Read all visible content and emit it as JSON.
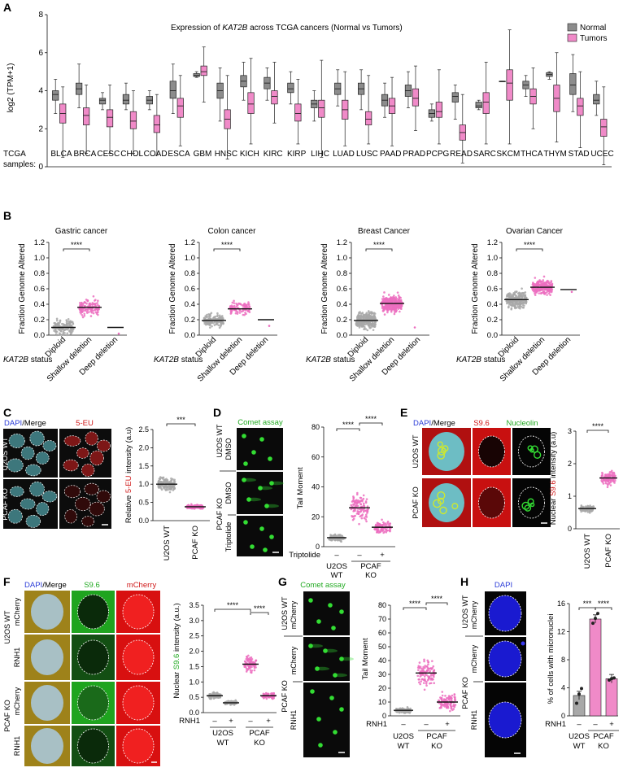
{
  "panels": {
    "A": "A",
    "B": "B",
    "C": "C",
    "D": "D",
    "E": "E",
    "F": "F",
    "G": "G",
    "H": "H"
  },
  "colors": {
    "normal": "#8c8c8c",
    "tumor": "#f08ac8",
    "scatter_gray": "#a8a8a8",
    "scatter_pink": "#ec6fc0",
    "green": "#33dd33",
    "red": "#e02222",
    "blue": "#1515d8",
    "cyan": "#66d0d8"
  },
  "chart_data": [
    {
      "id": "A",
      "type": "box",
      "title": "Expression of KAT2B across TCGA cancers (Normal vs Tumors)",
      "title_parts": {
        "before": "Expression of ",
        "italic": "KAT2B",
        "after": " across TCGA cancers (Normal vs Tumors)"
      },
      "ylabel": "log2 (TPM+1)",
      "ylim": [
        0,
        8
      ],
      "yticks": [
        "0",
        "2",
        "4",
        "6",
        "8"
      ],
      "xprefix": "TCGA samples:",
      "xprefix_lines": [
        "TCGA",
        "samples:"
      ],
      "categories": [
        "BLCA",
        "BRCA",
        "CESC",
        "CHOL",
        "COAD",
        "ESCA",
        "GBM",
        "HNSC",
        "KICH",
        "KIRC",
        "KIRP",
        "LIHC",
        "LUAD",
        "LUSC",
        "PAAD",
        "PRAD",
        "PCPG",
        "READ",
        "SARC",
        "SKCM",
        "THCA",
        "THYM",
        "STAD",
        "UCEC"
      ],
      "legend": [
        "Normal",
        "Tumors"
      ],
      "legend_position": "top-right",
      "series": [
        {
          "name": "Normal",
          "boxes": [
            [
              2.8,
              3.5,
              3.8,
              4.0,
              4.6
            ],
            [
              3.1,
              3.8,
              4.1,
              4.4,
              5.4
            ],
            [
              3.0,
              3.3,
              3.5,
              3.6,
              3.9
            ],
            [
              3.0,
              3.3,
              3.5,
              3.8,
              4.4
            ],
            [
              3.0,
              3.3,
              3.5,
              3.7,
              4.0
            ],
            [
              2.8,
              3.6,
              4.0,
              4.5,
              5.4
            ],
            [
              4.7,
              4.75,
              4.8,
              4.9,
              5.0
            ],
            [
              2.4,
              3.6,
              4.0,
              4.4,
              5.2
            ],
            [
              3.5,
              4.2,
              4.5,
              4.8,
              5.5
            ],
            [
              3.5,
              4.1,
              4.4,
              4.7,
              5.2
            ],
            [
              3.3,
              3.9,
              4.1,
              4.4,
              5.0
            ],
            [
              2.4,
              3.1,
              3.3,
              3.5,
              4.0
            ],
            [
              3.2,
              3.8,
              4.1,
              4.4,
              5.1
            ],
            [
              3.0,
              3.8,
              4.1,
              4.4,
              5.1
            ],
            [
              2.6,
              3.2,
              3.5,
              3.8,
              4.4
            ],
            [
              3.1,
              3.7,
              4.0,
              4.3,
              5.0
            ],
            [
              2.4,
              2.6,
              2.8,
              3.0,
              3.3
            ],
            [
              2.5,
              3.4,
              3.7,
              3.9,
              4.3
            ],
            [
              3.0,
              3.1,
              3.2,
              3.4,
              3.5
            ],
            [
              4.5,
              4.5,
              4.5,
              4.5,
              4.5
            ],
            [
              3.7,
              4.1,
              4.3,
              4.5,
              4.8
            ],
            [
              4.6,
              4.75,
              4.85,
              4.95,
              5.0
            ],
            [
              2.9,
              3.8,
              4.3,
              4.9,
              5.9
            ],
            [
              2.7,
              3.3,
              3.5,
              3.8,
              4.5
            ]
          ]
        },
        {
          "name": "Tumors",
          "boxes": [
            [
              0.5,
              2.3,
              2.8,
              3.3,
              4.2
            ],
            [
              0.7,
              2.2,
              2.7,
              3.1,
              4.3
            ],
            [
              0.7,
              2.1,
              2.6,
              3.0,
              4.3
            ],
            [
              0.7,
              2.0,
              2.4,
              2.9,
              4.0
            ],
            [
              0.6,
              1.8,
              2.2,
              2.7,
              3.8
            ],
            [
              1.1,
              2.6,
              3.2,
              3.6,
              4.8
            ],
            [
              3.4,
              4.8,
              5.0,
              5.3,
              6.3
            ],
            [
              0.4,
              2.0,
              2.5,
              3.0,
              4.8
            ],
            [
              1.2,
              2.8,
              3.3,
              3.9,
              5.7
            ],
            [
              2.3,
              3.3,
              3.7,
              4.0,
              5.5
            ],
            [
              1.2,
              2.4,
              2.8,
              3.3,
              4.6
            ],
            [
              0.5,
              2.6,
              3.1,
              3.5,
              5.6
            ],
            [
              1.1,
              2.5,
              3.0,
              3.5,
              5.0
            ],
            [
              1.2,
              2.2,
              2.5,
              2.9,
              4.8
            ],
            [
              1.1,
              2.8,
              3.2,
              3.6,
              4.7
            ],
            [
              1.9,
              3.2,
              3.6,
              4.1,
              5.3
            ],
            [
              1.2,
              2.6,
              2.9,
              3.4,
              5.1
            ],
            [
              0.2,
              1.4,
              1.8,
              2.2,
              3.8
            ],
            [
              1.2,
              2.8,
              3.4,
              3.9,
              5.5
            ],
            [
              1.2,
              3.5,
              4.4,
              5.1,
              7.2
            ],
            [
              2.0,
              3.3,
              3.7,
              4.1,
              5.2
            ],
            [
              1.3,
              2.9,
              3.6,
              4.3,
              6.0
            ],
            [
              1.0,
              2.7,
              3.2,
              3.6,
              5.0
            ],
            [
              0.1,
              1.6,
              2.1,
              2.5,
              4.2
            ]
          ]
        }
      ]
    },
    {
      "id": "B",
      "type": "scatter",
      "ylabel": "Fraction Genome Altered",
      "ylim": [
        0,
        1.2
      ],
      "yticks": [
        "0.0",
        "0.2",
        "0.4",
        "0.6",
        "0.8",
        "1.0",
        "1.2"
      ],
      "status_label": "KAT2B status",
      "status_italic": "KAT2B",
      "status_rest": " status",
      "categories": [
        "Diploid",
        "Shallow deletion",
        "Deep deletion"
      ],
      "significance": "****",
      "subplots": [
        {
          "title": "Gastric cancer",
          "medians": [
            0.1,
            0.36,
            0.1
          ]
        },
        {
          "title": "Colon cancer",
          "medians": [
            0.19,
            0.34,
            0.2
          ]
        },
        {
          "title": "Breast Cancer",
          "medians": [
            0.19,
            0.41,
            null
          ]
        },
        {
          "title": "Ovarian Cancer",
          "medians": [
            0.46,
            0.62,
            0.59
          ]
        }
      ]
    },
    {
      "id": "C",
      "type": "scatter",
      "image_labels": {
        "dapi": "DAPI",
        "merge": "/Merge",
        "channel": "5-EU"
      },
      "row_labels": [
        "U2OS WT",
        "PCAF KO"
      ],
      "ylabel": "Relative 5-EU intensity (a.u)",
      "ylabel_parts": {
        "before": "Relative ",
        "colored": "5-EU",
        "after": " intensity (a.u)"
      },
      "ylim": [
        0,
        2.5
      ],
      "yticks": [
        "0.0",
        "0.5",
        "1.0",
        "1.5",
        "2.0",
        "2.5"
      ],
      "categories": [
        "U2OS WT",
        "PCAF KO"
      ],
      "medians": [
        1.0,
        0.38
      ],
      "significance": "***"
    },
    {
      "id": "D",
      "type": "scatter",
      "image_title": "Comet assay",
      "row_labels": {
        "top_group": "U2OS WT",
        "top": "DMSO",
        "bottom_group": "PCAF KO",
        "mid": "DMSO",
        "bottom": "Triptolide"
      },
      "ylabel": "Tail Moment",
      "ylim": [
        0,
        80
      ],
      "yticks": [
        "0",
        "20",
        "40",
        "60",
        "80"
      ],
      "treatment_label": "Triptolide",
      "treatment_signs": [
        "–",
        "–",
        "+"
      ],
      "groups": [
        "U2OS",
        "WT",
        "PCAF",
        "KO"
      ],
      "medians": [
        6,
        26,
        13
      ],
      "significance": [
        "****",
        "****"
      ]
    },
    {
      "id": "E",
      "type": "scatter",
      "image_labels": {
        "dapi": "DAPI",
        "merge": "/Merge",
        "s96": "S9.6",
        "nucleolin": "Nucleolin"
      },
      "row_labels": [
        "U2OS WT",
        "PCAF KO"
      ],
      "ylabel": "Nuclear S9.6 intensity (a.u)",
      "ylabel_parts": {
        "before": "Nuclear ",
        "colored": "S9.6",
        "after": " intensity (a.u)"
      },
      "ylim": [
        0,
        3
      ],
      "yticks": [
        "0",
        "1",
        "2",
        "3"
      ],
      "categories": [
        "U2OS WT",
        "PCAF KO"
      ],
      "medians": [
        0.62,
        1.56
      ],
      "significance": "****"
    },
    {
      "id": "F",
      "type": "scatter",
      "image_labels": {
        "dapi": "DAPI",
        "merge": "/Merge",
        "s96": "S9.6",
        "mcherry": "mCherry"
      },
      "row_labels": {
        "g1": "U2OS WT",
        "g2": "PCAF KO",
        "r1": "mCherry",
        "r2": "RNH1"
      },
      "ylabel": "Nuclear S9.6 intensity (a.u.)",
      "ylabel_parts": {
        "before": "Nuclear ",
        "colored": "S9.6",
        "after": " intensity (a.u.)"
      },
      "ylim": [
        0,
        3.5
      ],
      "yticks": [
        "0.0",
        "0.5",
        "1.0",
        "1.5",
        "2.0",
        "2.5",
        "3.0",
        "3.5"
      ],
      "treatment_label": "RNH1",
      "treatment_signs": [
        "–",
        "+",
        "–",
        "+"
      ],
      "groups": [
        "U2OS",
        "WT",
        "PCAF",
        "KO"
      ],
      "medians": [
        0.55,
        0.32,
        1.58,
        0.55
      ],
      "significance": [
        "****",
        "****"
      ]
    },
    {
      "id": "G",
      "type": "scatter",
      "image_title": "Comet assay",
      "row_labels": {
        "g1": "U2OS WT",
        "g2": "PCAF KO",
        "r1": "mCherry",
        "r2": "mCherry",
        "r3": "RNH1"
      },
      "ylabel": "Tail Moment",
      "ylim": [
        0,
        80
      ],
      "yticks": [
        "0",
        "10",
        "20",
        "30",
        "40",
        "50",
        "60",
        "70",
        "80"
      ],
      "treatment_label": "RNH1",
      "treatment_signs": [
        "–",
        "–",
        "+"
      ],
      "groups": [
        "U2OS",
        "WT",
        "PCAF",
        "KO"
      ],
      "medians": [
        4,
        31,
        10
      ],
      "significance": [
        "****",
        "****"
      ]
    },
    {
      "id": "H",
      "type": "bar",
      "image_title": "DAPI",
      "row_labels": {
        "g1": "U2OS WT",
        "g2": "PCAF KO",
        "r1": "mCherry",
        "r2": "mCherry",
        "r3": "RNH1"
      },
      "ylabel": "% of cells with micronuclei",
      "ylim": [
        0,
        16
      ],
      "yticks": [
        "0",
        "4",
        "8",
        "12",
        "16"
      ],
      "treatment_label": "RNH1",
      "treatment_signs": [
        "–",
        "–",
        "+"
      ],
      "groups": [
        "U2OS",
        "WT",
        "PCAF",
        "KO"
      ],
      "values": [
        2.9,
        13.8,
        5.3
      ],
      "points": [
        [
          1.8,
          3.1,
          3.9
        ],
        [
          13.2,
          13.9,
          14.6
        ],
        [
          5.1,
          5.3,
          5.4
        ]
      ],
      "significance": [
        "***",
        "****"
      ]
    }
  ]
}
